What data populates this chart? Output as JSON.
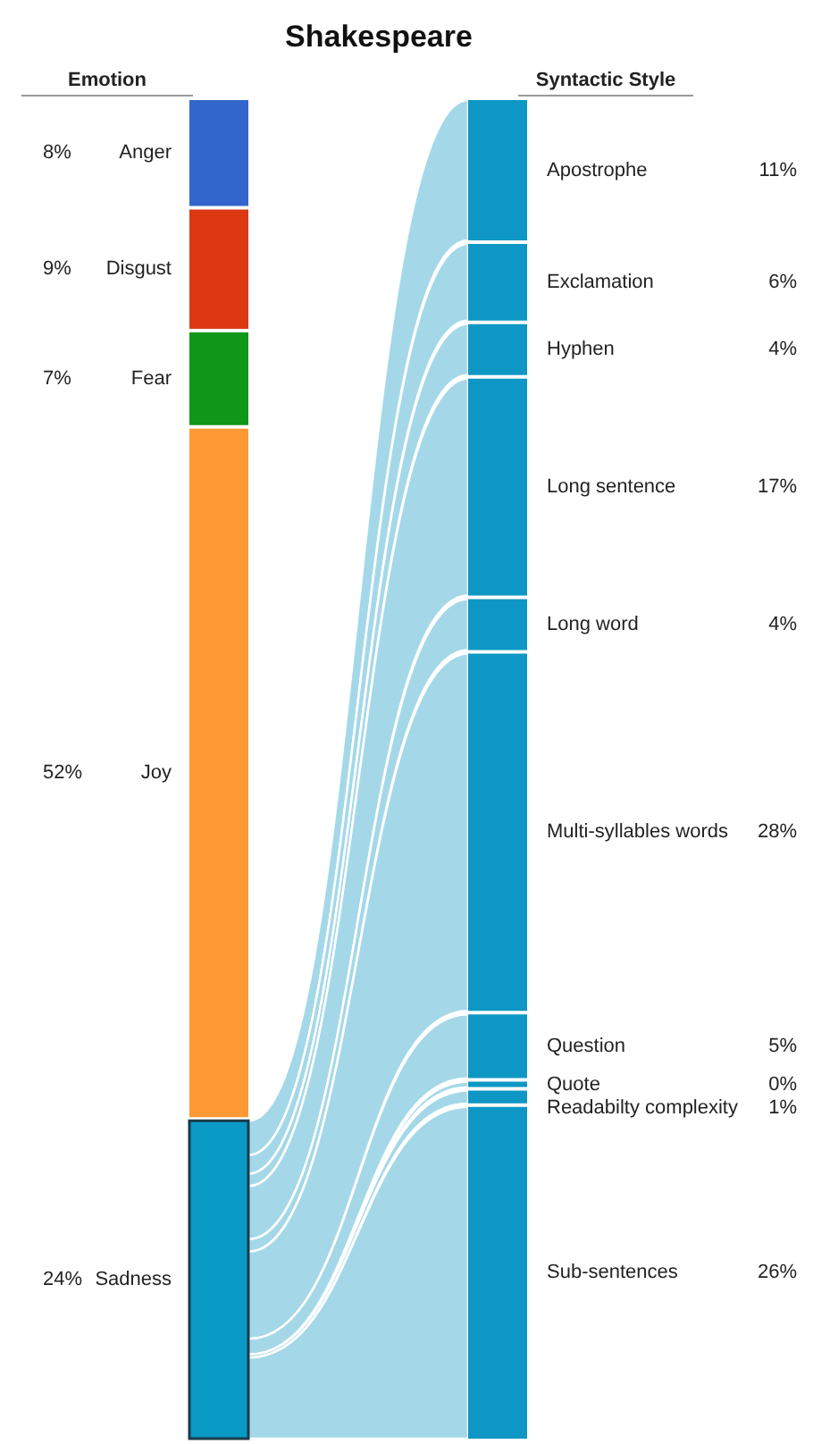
{
  "chart_data": {
    "type": "other",
    "title": "Shakespeare",
    "categories": [
      "Anger",
      "Disgust",
      "Fear",
      "Joy",
      "Sadness",
      "Apostrophe",
      "Exclamation",
      "Hyphen",
      "Long sentence",
      "Long word",
      "Multi-syllables words",
      "Question",
      "Quote",
      "Readabilty complexity",
      "Sub-sentences"
    ],
    "series": [
      {
        "name": "Emotion",
        "colors": [
          "#3366cc",
          "#dc3912",
          "#109618",
          "#ff9933",
          "#0899c5",
          null,
          null,
          null,
          null,
          null,
          null,
          null,
          null,
          null,
          null
        ],
        "values": [
          8,
          9,
          7,
          52,
          24,
          null,
          null,
          null,
          null,
          null,
          null,
          null,
          null,
          null,
          null
        ],
        "value_labels": [
          "8%",
          "9%",
          "7%",
          "52%",
          "24%",
          null,
          null,
          null,
          null,
          null,
          null,
          null,
          null,
          null,
          null
        ]
      },
      {
        "name": "Syntactic Style",
        "colors": [
          null,
          null,
          null,
          null,
          null,
          "#0e97c4",
          "#0e97c4",
          "#0e97c4",
          "#0e97c4",
          "#0e97c4",
          "#0e97c4",
          "#0e97c4",
          "#0e97c4",
          "#0e97c4",
          "#0e97c4"
        ],
        "values": [
          null,
          null,
          null,
          null,
          null,
          11,
          6,
          4,
          17,
          4,
          28,
          5,
          0,
          1,
          26
        ],
        "value_labels": [
          null,
          null,
          null,
          null,
          null,
          "11%",
          "6%",
          "4%",
          "17%",
          "4%",
          "28%",
          "5%",
          "0%",
          "1%",
          "26%"
        ]
      }
    ]
  }
}
